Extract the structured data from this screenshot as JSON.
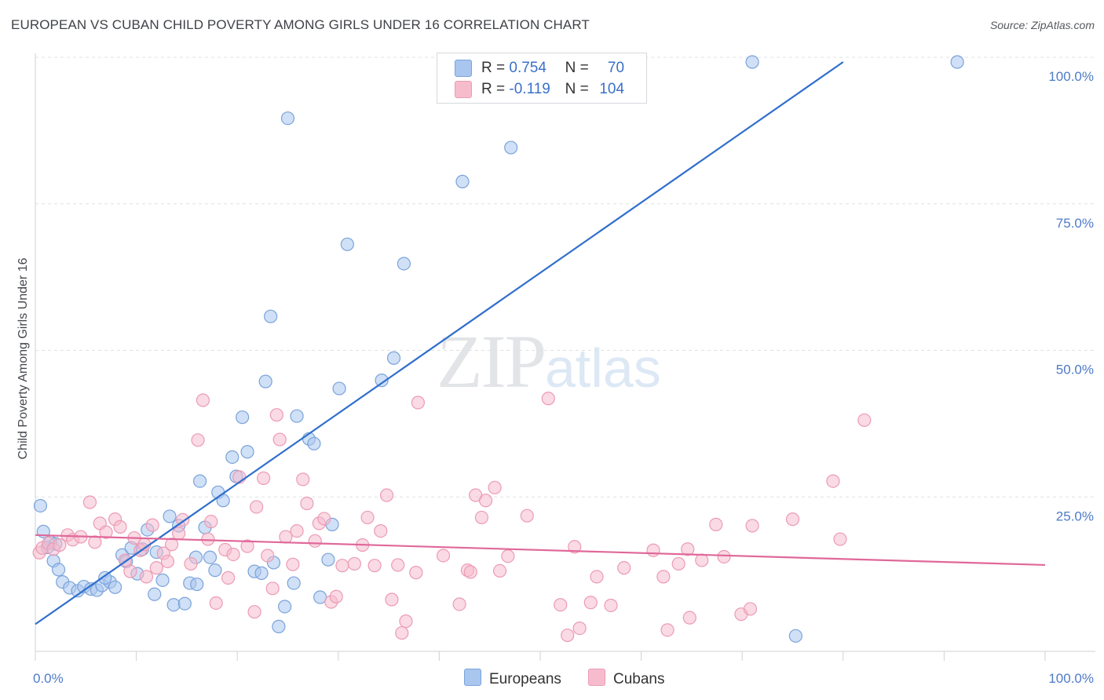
{
  "title": "EUROPEAN VS CUBAN CHILD POVERTY AMONG GIRLS UNDER 16 CORRELATION CHART",
  "source": "Source: ZipAtlas.com",
  "watermark": {
    "zip": "ZIP",
    "atlas": "atlas"
  },
  "legend": {
    "europeans": {
      "r_label": "R =",
      "r_value": "0.754",
      "n_label": "N =",
      "n_value": "70"
    },
    "cubans": {
      "r_label": "R =",
      "r_value": "-0.119",
      "n_label": "N =",
      "n_value": "104"
    }
  },
  "colors": {
    "europeans_fill": "#a9c6ef",
    "europeans_stroke": "#7aa3db",
    "europeans_line": "#2f6fcc",
    "cubans_fill": "#f6bccd",
    "cubans_stroke": "#ec9bb4",
    "cubans_line": "#e0689a",
    "tick_text": "#4e7bc8",
    "grid": "#dfe1e4"
  },
  "chart_data": {
    "type": "scatter",
    "title": "EUROPEAN VS CUBAN CHILD POVERTY AMONG GIRLS UNDER 16 CORRELATION CHART",
    "xlabel": "",
    "ylabel": "Child Poverty Among Girls Under 16",
    "xlim": [
      0,
      100
    ],
    "ylim": [
      0,
      100
    ],
    "x_tick_labels": [
      "0.0%",
      "100.0%"
    ],
    "y_tick_labels": [
      {
        "value": 25,
        "label": "25.0%"
      },
      {
        "value": 50,
        "label": "50.0%"
      },
      {
        "value": 75,
        "label": "75.0%"
      },
      {
        "value": 100,
        "label": "100.0%"
      }
    ],
    "grid": true,
    "legend_position": "bottom",
    "series": [
      {
        "name": "Europeans",
        "r": 0.754,
        "n": 70,
        "trend": {
          "x": [
            0,
            80
          ],
          "y": [
            4.1,
            100
          ]
        },
        "points": [
          [
            0.5,
            24.3
          ],
          [
            0.8,
            19.9
          ],
          [
            1.2,
            17.2
          ],
          [
            1.5,
            18.1
          ],
          [
            1.8,
            14.9
          ],
          [
            2.3,
            13.4
          ],
          [
            2.7,
            11.3
          ],
          [
            3.4,
            10.3
          ],
          [
            4.2,
            9.8
          ],
          [
            4.8,
            10.5
          ],
          [
            5.5,
            10.1
          ],
          [
            6.1,
            9.9
          ],
          [
            6.6,
            10.7
          ],
          [
            7.4,
            11.3
          ],
          [
            7.9,
            10.4
          ],
          [
            8.6,
            15.9
          ],
          [
            9.0,
            14.8
          ],
          [
            9.5,
            17.1
          ],
          [
            10.1,
            12.7
          ],
          [
            10.6,
            16.9
          ],
          [
            11.1,
            20.2
          ],
          [
            11.8,
            9.2
          ],
          [
            12.0,
            16.4
          ],
          [
            12.6,
            11.6
          ],
          [
            13.3,
            22.5
          ],
          [
            13.7,
            7.4
          ],
          [
            14.2,
            20.9
          ],
          [
            14.8,
            7.6
          ],
          [
            15.3,
            11.1
          ],
          [
            15.9,
            15.5
          ],
          [
            16.3,
            28.5
          ],
          [
            16.8,
            20.6
          ],
          [
            17.3,
            15.5
          ],
          [
            17.8,
            13.3
          ],
          [
            18.1,
            26.6
          ],
          [
            18.6,
            25.2
          ],
          [
            19.5,
            32.6
          ],
          [
            19.9,
            29.3
          ],
          [
            20.5,
            39.4
          ],
          [
            21.0,
            33.5
          ],
          [
            21.7,
            13.1
          ],
          [
            22.4,
            12.8
          ],
          [
            22.8,
            45.5
          ],
          [
            23.3,
            56.6
          ],
          [
            23.6,
            14.6
          ],
          [
            24.1,
            3.7
          ],
          [
            24.7,
            7.1
          ],
          [
            25.0,
            90.4
          ],
          [
            25.6,
            11.1
          ],
          [
            25.9,
            39.6
          ],
          [
            27.1,
            35.7
          ],
          [
            27.6,
            34.9
          ],
          [
            28.2,
            8.7
          ],
          [
            29.0,
            15.1
          ],
          [
            29.4,
            21.1
          ],
          [
            30.1,
            44.3
          ],
          [
            30.9,
            68.9
          ],
          [
            34.3,
            45.7
          ],
          [
            35.5,
            49.5
          ],
          [
            36.5,
            65.6
          ],
          [
            42.3,
            79.6
          ],
          [
            47.1,
            85.4
          ],
          [
            51.6,
            100
          ],
          [
            54.0,
            100
          ],
          [
            71.0,
            100
          ],
          [
            75.3,
            2.1
          ],
          [
            91.3,
            100
          ],
          [
            2.0,
            17.8
          ],
          [
            6.9,
            12.0
          ],
          [
            16.0,
            10.9
          ]
        ]
      },
      {
        "name": "Cubans",
        "r": -0.119,
        "n": 104,
        "trend": {
          "x": [
            0,
            100
          ],
          "y": [
            19.3,
            14.2
          ]
        },
        "points": [
          [
            0.4,
            16.3
          ],
          [
            0.7,
            17.1
          ],
          [
            1.3,
            17.9
          ],
          [
            1.8,
            16.9
          ],
          [
            2.4,
            17.6
          ],
          [
            3.2,
            19.3
          ],
          [
            3.7,
            18.5
          ],
          [
            4.5,
            19.0
          ],
          [
            5.4,
            24.9
          ],
          [
            5.9,
            18.1
          ],
          [
            6.4,
            21.3
          ],
          [
            7.0,
            19.8
          ],
          [
            7.9,
            22.0
          ],
          [
            8.4,
            20.7
          ],
          [
            8.9,
            15.0
          ],
          [
            9.4,
            13.1
          ],
          [
            9.8,
            18.8
          ],
          [
            10.4,
            16.7
          ],
          [
            10.8,
            17.7
          ],
          [
            11.0,
            12.2
          ],
          [
            11.6,
            21.0
          ],
          [
            12.0,
            13.7
          ],
          [
            12.7,
            16.2
          ],
          [
            13.1,
            14.8
          ],
          [
            13.5,
            17.7
          ],
          [
            14.2,
            19.6
          ],
          [
            14.6,
            21.9
          ],
          [
            15.4,
            14.4
          ],
          [
            16.1,
            35.5
          ],
          [
            16.6,
            42.3
          ],
          [
            17.1,
            18.6
          ],
          [
            17.4,
            21.6
          ],
          [
            17.9,
            7.7
          ],
          [
            18.8,
            16.8
          ],
          [
            19.1,
            12.0
          ],
          [
            19.6,
            16.0
          ],
          [
            20.2,
            29.2
          ],
          [
            21.0,
            17.4
          ],
          [
            21.7,
            6.2
          ],
          [
            21.9,
            24.1
          ],
          [
            22.6,
            29.0
          ],
          [
            23.0,
            15.8
          ],
          [
            23.5,
            10.2
          ],
          [
            23.9,
            39.8
          ],
          [
            24.2,
            35.6
          ],
          [
            24.8,
            19.0
          ],
          [
            25.5,
            14.3
          ],
          [
            25.9,
            20.0
          ],
          [
            26.5,
            28.8
          ],
          [
            26.9,
            24.7
          ],
          [
            27.7,
            18.3
          ],
          [
            28.1,
            21.3
          ],
          [
            28.6,
            22.1
          ],
          [
            29.3,
            7.9
          ],
          [
            29.8,
            8.8
          ],
          [
            30.4,
            14.1
          ],
          [
            31.6,
            14.4
          ],
          [
            32.4,
            17.6
          ],
          [
            32.9,
            22.3
          ],
          [
            33.6,
            14.1
          ],
          [
            34.2,
            20.0
          ],
          [
            34.8,
            26.1
          ],
          [
            35.3,
            8.3
          ],
          [
            35.9,
            14.2
          ],
          [
            36.7,
            4.6
          ],
          [
            36.3,
            2.6
          ],
          [
            37.7,
            12.9
          ],
          [
            37.9,
            41.9
          ],
          [
            40.4,
            15.8
          ],
          [
            42.0,
            7.5
          ],
          [
            42.8,
            13.3
          ],
          [
            43.1,
            13.0
          ],
          [
            43.6,
            26.1
          ],
          [
            44.2,
            22.3
          ],
          [
            44.6,
            25.2
          ],
          [
            45.5,
            27.4
          ],
          [
            46.0,
            13.2
          ],
          [
            46.8,
            15.7
          ],
          [
            48.7,
            22.6
          ],
          [
            50.8,
            42.6
          ],
          [
            52.0,
            7.4
          ],
          [
            52.7,
            2.2
          ],
          [
            53.4,
            17.3
          ],
          [
            53.9,
            3.4
          ],
          [
            55.0,
            7.8
          ],
          [
            55.6,
            12.2
          ],
          [
            57.0,
            7.3
          ],
          [
            58.3,
            13.7
          ],
          [
            61.2,
            16.7
          ],
          [
            62.2,
            12.2
          ],
          [
            62.6,
            3.1
          ],
          [
            63.7,
            14.4
          ],
          [
            64.6,
            16.9
          ],
          [
            64.8,
            5.2
          ],
          [
            66.0,
            15.0
          ],
          [
            67.4,
            21.1
          ],
          [
            68.2,
            15.6
          ],
          [
            69.9,
            5.8
          ],
          [
            70.8,
            6.7
          ],
          [
            71.0,
            20.9
          ],
          [
            75.0,
            22.0
          ],
          [
            79.0,
            28.5
          ],
          [
            79.7,
            18.6
          ],
          [
            82.1,
            38.9
          ]
        ]
      }
    ]
  },
  "bottom_legend": {
    "europeans_label": "Europeans",
    "cubans_label": "Cubans"
  }
}
